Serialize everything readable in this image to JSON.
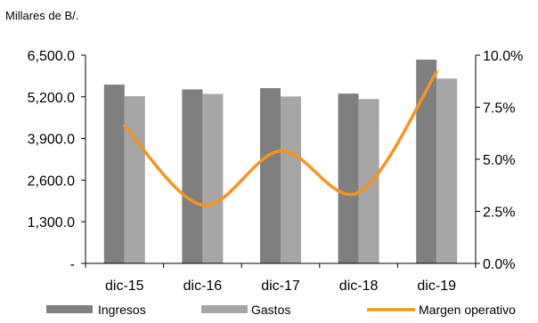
{
  "chart_data": {
    "type": "bar",
    "unit_label": "Millares de B/.",
    "categories": [
      "dic-15",
      "dic-16",
      "dic-17",
      "dic-18",
      "dic-19"
    ],
    "series": [
      {
        "name": "Ingresos",
        "type": "bar",
        "axis": "left",
        "color": "#7f7f7f",
        "values": [
          5580,
          5430,
          5470,
          5300,
          6360
        ]
      },
      {
        "name": "Gastos",
        "type": "bar",
        "axis": "left",
        "color": "#a6a6a6",
        "values": [
          5220,
          5290,
          5210,
          5130,
          5770
        ]
      },
      {
        "name": "Margen operativo",
        "type": "line",
        "axis": "right",
        "color": "#f7941d",
        "values": [
          6.6,
          2.8,
          5.4,
          3.4,
          9.2
        ]
      }
    ],
    "y_left": {
      "min": 0,
      "max": 6500,
      "ticks": [
        "-",
        "1,300.0",
        "2,600.0",
        "3,900.0",
        "5,200.0",
        "6,500.0"
      ]
    },
    "y_right": {
      "min": 0,
      "max": 10,
      "ticks": [
        "0.0%",
        "2.5%",
        "5.0%",
        "7.5%",
        "10.0%"
      ]
    },
    "grid": false,
    "legend_position": "bottom"
  }
}
